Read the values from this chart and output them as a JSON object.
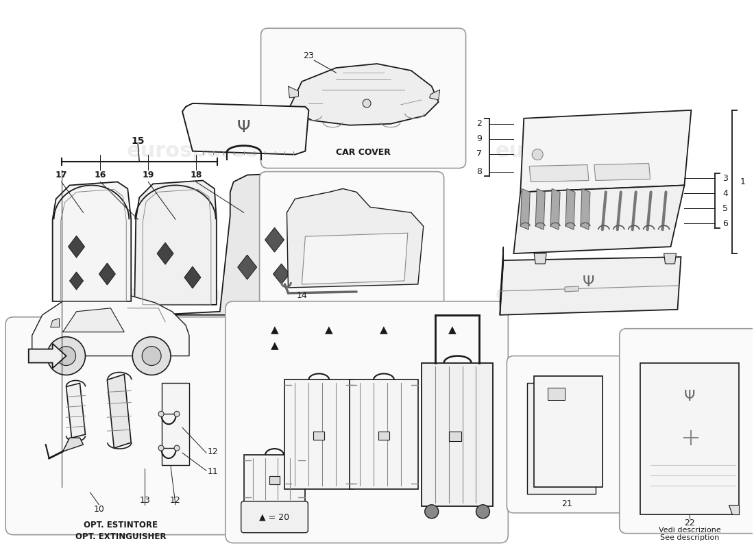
{
  "bg_color": "#ffffff",
  "line_color": "#1a1a1a",
  "gray": "#888888",
  "light_gray": "#cccccc",
  "fill_light": "#f8f8f8",
  "fill_med": "#eeeeee",
  "watermark_color": "#dddddd",
  "watermark_text": "eurospares",
  "box_edge": "#999999",
  "part_numbers": {
    "n15": "15",
    "n17": "17",
    "n16": "16",
    "n19": "19",
    "n18": "18",
    "n23": "23",
    "car_cover_label": "CAR COVER",
    "n2": "2",
    "n9": "9",
    "n7": "7",
    "n8": "8",
    "n3": "3",
    "n4": "4",
    "n5": "5",
    "n6": "6",
    "n1": "1",
    "n14": "14",
    "n10": "10",
    "n11": "11",
    "n12": "12",
    "n13": "13",
    "ext_label1": "OPT. ESTINTORE",
    "ext_label2": "OPT. EXTINGUISHER",
    "luggage_eq": "▲ = 20",
    "n21": "21",
    "n22": "22",
    "desc_label1": "Vedi descrizione",
    "desc_label2": "See description"
  }
}
